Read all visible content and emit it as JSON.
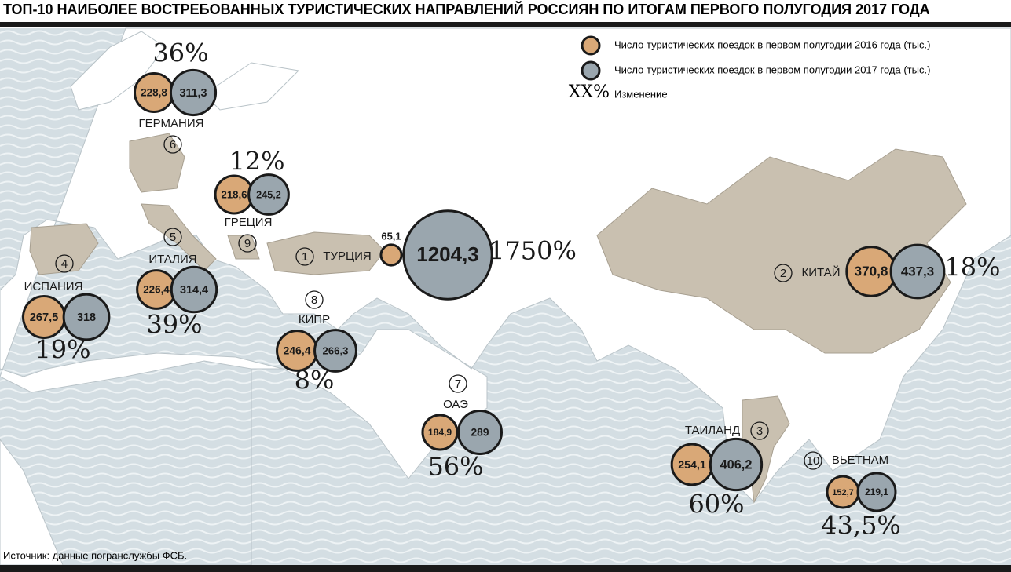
{
  "header": {
    "title": "ТОП-10 НАИБОЛЕЕ ВОСТРЕБОВАННЫХ ТУРИСТИЧЕСКИХ НАПРАВЛЕНИЙ РОССИЯН ПО ИТОГАМ ПЕРВОГО ПОЛУГОДИЯ 2017 ГОДА"
  },
  "legend": {
    "trips_2016": "Число туристических поездок в первом полугодии 2016 года (тыс.)",
    "trips_2017": "Число туристических поездок в первом полугодии 2017 года (тыс.)",
    "change_sample": "XX%",
    "change": "Изменение"
  },
  "destinations": [
    {
      "rank": 6,
      "name": "ГЕРМАНИЯ",
      "trips_2016": {
        "value": 228.8,
        "label": "228,8"
      },
      "trips_2017": {
        "value": 311.3,
        "label": "311,3"
      },
      "change": {
        "value": 36,
        "label": "36%"
      }
    },
    {
      "rank": 9,
      "name": "ГРЕЦИЯ",
      "trips_2016": {
        "value": 218.6,
        "label": "218,6"
      },
      "trips_2017": {
        "value": 245.2,
        "label": "245,2"
      },
      "change": {
        "value": 12,
        "label": "12%"
      }
    },
    {
      "rank": 5,
      "name": "ИТАЛИЯ",
      "trips_2016": {
        "value": 226.4,
        "label": "226,4"
      },
      "trips_2017": {
        "value": 314.4,
        "label": "314,4"
      },
      "change": {
        "value": 39,
        "label": "39%"
      }
    },
    {
      "rank": 4,
      "name": "ИСПАНИЯ",
      "trips_2016": {
        "value": 267.5,
        "label": "267,5"
      },
      "trips_2017": {
        "value": 318,
        "label": "318"
      },
      "change": {
        "value": 19,
        "label": "19%"
      }
    },
    {
      "rank": 1,
      "name": "ТУРЦИЯ",
      "trips_2016": {
        "value": 65.1,
        "label": "65,1"
      },
      "trips_2017": {
        "value": 1204.3,
        "label": "1204,3"
      },
      "change": {
        "value": 1750,
        "label": "1750%"
      }
    },
    {
      "rank": 8,
      "name": "КИПР",
      "trips_2016": {
        "value": 246.4,
        "label": "246,4"
      },
      "trips_2017": {
        "value": 266.3,
        "label": "266,3"
      },
      "change": {
        "value": 8,
        "label": "8%"
      }
    },
    {
      "rank": 7,
      "name": "ОАЭ",
      "trips_2016": {
        "value": 184.9,
        "label": "184,9"
      },
      "trips_2017": {
        "value": 289,
        "label": "289"
      },
      "change": {
        "value": 56,
        "label": "56%"
      }
    },
    {
      "rank": 2,
      "name": "КИТАЙ",
      "trips_2016": {
        "value": 370.8,
        "label": "370,8"
      },
      "trips_2017": {
        "value": 437.3,
        "label": "437,3"
      },
      "change": {
        "value": 18,
        "label": "18%"
      }
    },
    {
      "rank": 3,
      "name": "ТАИЛАНД",
      "trips_2016": {
        "value": 254.1,
        "label": "254,1"
      },
      "trips_2017": {
        "value": 406.2,
        "label": "406,2"
      },
      "change": {
        "value": 60,
        "label": "60%"
      }
    },
    {
      "rank": 10,
      "name": "ВЬЕТНАМ",
      "trips_2016": {
        "value": 152.7,
        "label": "152,7"
      },
      "trips_2017": {
        "value": 219.1,
        "label": "219,1"
      },
      "change": {
        "value": 43.5,
        "label": "43,5%"
      }
    }
  ],
  "footer": {
    "source": "Источник: данные погранслужбы ФСБ."
  }
}
